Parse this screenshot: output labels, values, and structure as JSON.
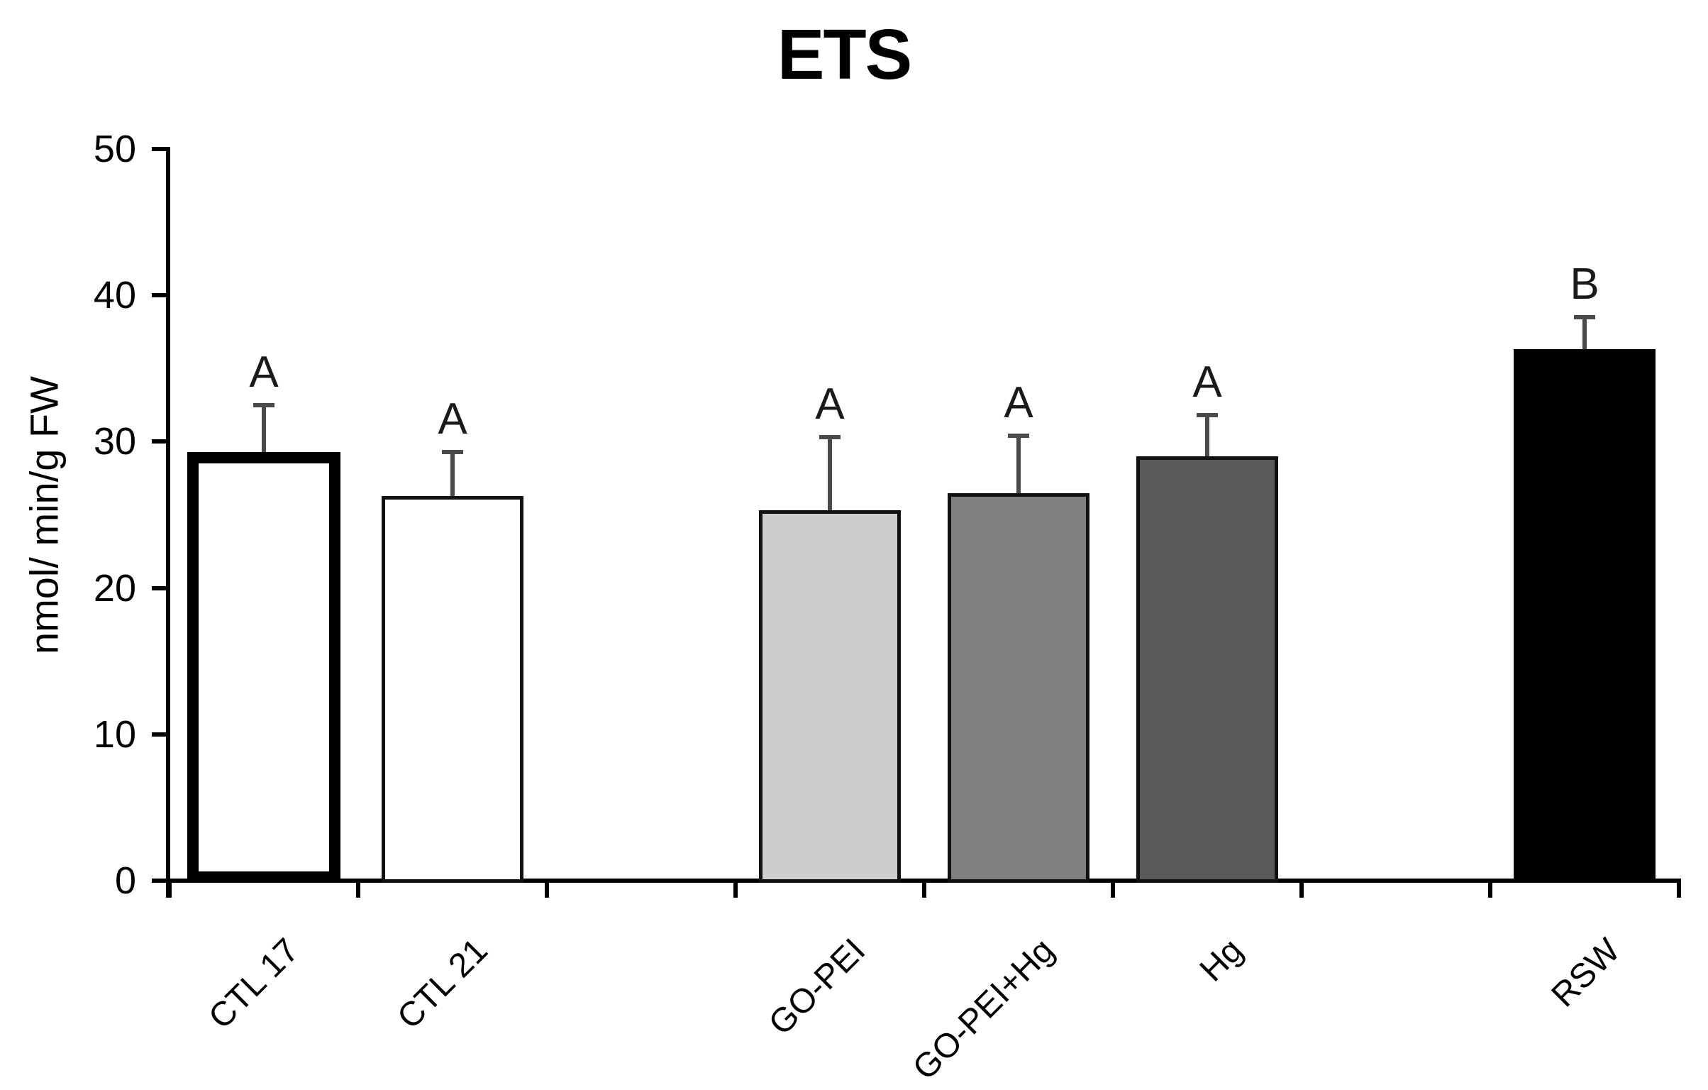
{
  "chart_data": {
    "type": "bar",
    "title": "ETS",
    "ylabel": "nmol/ min/g FW",
    "xlabel": "",
    "ylim": [
      0,
      50
    ],
    "yticks": [
      "0",
      "10",
      "20",
      "30",
      "40",
      "50"
    ],
    "grid": false,
    "legend": null,
    "categories": [
      "CTL 17",
      "CTL 21",
      "GO-PEI",
      "GO-PEI+Hg",
      "Hg",
      "RSW"
    ],
    "values": [
      29.3,
      26.3,
      25.3,
      26.5,
      29.0,
      36.3
    ],
    "errors_upper": [
      3.2,
      3.0,
      5.0,
      3.9,
      2.8,
      2.2
    ],
    "significance_letters": [
      "A",
      "A",
      "A",
      "A",
      "A",
      "B"
    ],
    "bar_styles": [
      {
        "fill": "#ffffff",
        "border": "#000000",
        "border_px": 16,
        "slot": 0
      },
      {
        "fill": "#ffffff",
        "border": "#111111",
        "border_px": 5,
        "slot": 1
      },
      {
        "fill": "#cecccc",
        "border": "#111111",
        "border_px": 5,
        "slot": 3
      },
      {
        "fill": "#7f7f7f",
        "border": "#111111",
        "border_px": 5,
        "slot": 4
      },
      {
        "fill": "#595959",
        "border": "#111111",
        "border_px": 5,
        "slot": 5
      },
      {
        "fill": "#000000",
        "border": "#000000",
        "border_px": 5,
        "slot": 7
      }
    ],
    "n_slots": 8,
    "error_bar_color": "#4a4a4a",
    "axis_color": "#000000",
    "text_color": "#000000"
  }
}
